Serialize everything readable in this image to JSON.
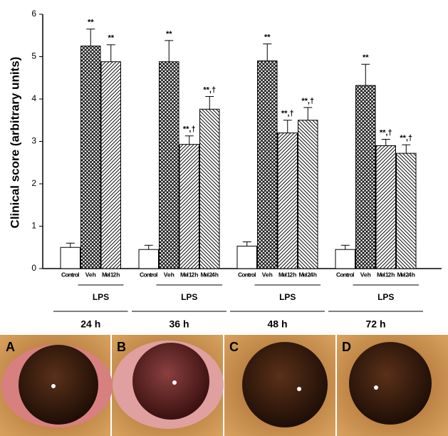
{
  "chart_data": {
    "type": "bar",
    "ylabel": "Clinical score (arbitrary units)",
    "ylim": [
      0,
      6
    ],
    "yticks": [
      0,
      1,
      2,
      3,
      4,
      5,
      6
    ],
    "groups": [
      {
        "name": "24 h",
        "lps": "LPS",
        "bars": [
          {
            "label": "Control",
            "value": 0.5,
            "error": 0.1,
            "style": "plain"
          },
          {
            "label": "Veh",
            "value": 5.25,
            "error": 0.4,
            "style": "crosshatch",
            "annotation": "**"
          },
          {
            "label": "Mel 12 h",
            "value": 4.88,
            "error": 0.4,
            "style": "hatch",
            "annotation": "**"
          }
        ]
      },
      {
        "name": "36 h",
        "lps": "LPS",
        "bars": [
          {
            "label": "Control",
            "value": 0.45,
            "error": 0.1,
            "style": "plain"
          },
          {
            "label": "Veh",
            "value": 4.88,
            "error": 0.5,
            "style": "crosshatch",
            "annotation": "**"
          },
          {
            "label": "Mel 12 h",
            "value": 2.93,
            "error": 0.2,
            "style": "hatch",
            "annotation": "**,†"
          },
          {
            "label": "Mel 24 h",
            "value": 3.76,
            "error": 0.3,
            "style": "hatch2",
            "annotation": "**,†"
          }
        ]
      },
      {
        "name": "48 h",
        "lps": "LPS",
        "bars": [
          {
            "label": "Control",
            "value": 0.53,
            "error": 0.1,
            "style": "plain"
          },
          {
            "label": "Veh",
            "value": 4.9,
            "error": 0.4,
            "style": "crosshatch",
            "annotation": "**"
          },
          {
            "label": "Mel 12 h",
            "value": 3.2,
            "error": 0.3,
            "style": "hatch",
            "annotation": "**,†"
          },
          {
            "label": "Mel 24 h",
            "value": 3.5,
            "error": 0.3,
            "style": "hatch2",
            "annotation": "**,†"
          }
        ]
      },
      {
        "name": "72 h",
        "lps": "LPS",
        "bars": [
          {
            "label": "Control",
            "value": 0.45,
            "error": 0.1,
            "style": "plain"
          },
          {
            "label": "Veh",
            "value": 4.32,
            "error": 0.5,
            "style": "crosshatch",
            "annotation": "**"
          },
          {
            "label": "Mel 12 h",
            "value": 2.9,
            "error": 0.15,
            "style": "hatch",
            "annotation": "**,†"
          },
          {
            "label": "Mel 24 h",
            "value": 2.72,
            "error": 0.2,
            "style": "hatch2",
            "annotation": "**,†"
          }
        ]
      }
    ]
  },
  "photos": [
    "A",
    "B",
    "C",
    "D"
  ]
}
